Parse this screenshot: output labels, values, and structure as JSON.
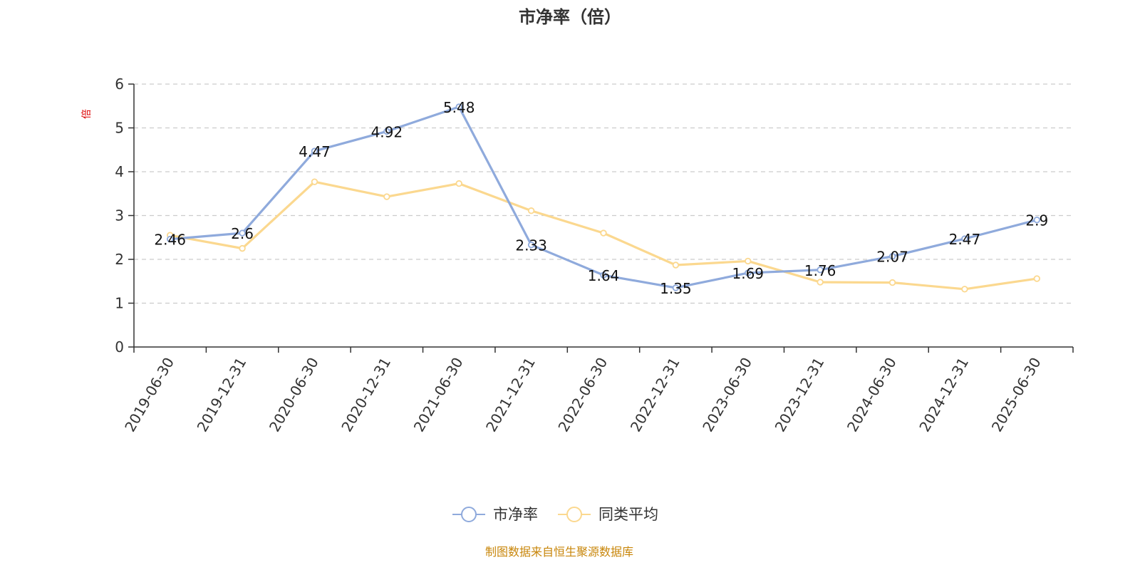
{
  "chart_data": {
    "type": "line",
    "title": "市净率（倍）",
    "ylabel": "倍",
    "ylim": [
      0,
      6
    ],
    "yticks": [
      0,
      1,
      2,
      3,
      4,
      5,
      6
    ],
    "grid": true,
    "legend_position": "bottom-center",
    "categories": [
      "2019-06-30",
      "2019-12-31",
      "2020-06-30",
      "2020-12-31",
      "2021-06-30",
      "2021-12-31",
      "2022-06-30",
      "2022-12-31",
      "2023-06-30",
      "2023-12-31",
      "2024-06-30",
      "2024-12-31",
      "2025-06-30"
    ],
    "series": [
      {
        "name": "市净率",
        "color": "#8faadc",
        "values": [
          2.46,
          2.6,
          4.47,
          4.92,
          5.48,
          2.33,
          1.64,
          1.35,
          1.69,
          1.76,
          2.07,
          2.47,
          2.9
        ],
        "labels": [
          "2.46",
          "2.6",
          "4.47",
          "4.92",
          "5.48",
          "2.33",
          "1.64",
          "1.35",
          "1.69",
          "1.76",
          "2.07",
          "2.47",
          "2.9"
        ]
      },
      {
        "name": "同类平均",
        "color": "#fbd88f",
        "values": [
          2.55,
          2.25,
          3.77,
          3.43,
          3.73,
          3.11,
          2.6,
          1.87,
          1.96,
          1.48,
          1.47,
          1.32,
          1.56
        ]
      }
    ]
  },
  "source_note": "制图数据来自恒生聚源数据库"
}
